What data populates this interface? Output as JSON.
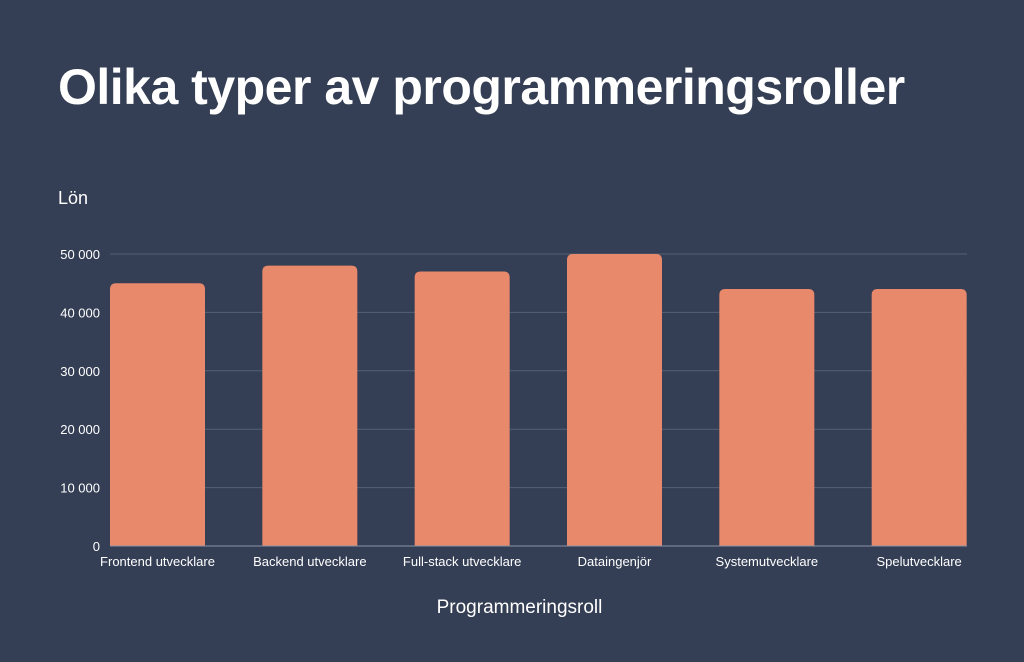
{
  "chart_data": {
    "type": "bar",
    "title": "Olika typer av programmeringsroller",
    "xlabel": "Programmeringsroll",
    "ylabel": "Lön",
    "categories": [
      "Frontend utvecklare",
      "Backend utvecklare",
      "Full-stack utvecklare",
      "Dataingenjör",
      "Systemutvecklare",
      "Spelutvecklare"
    ],
    "values": [
      45000,
      48000,
      47000,
      50000,
      44000,
      44000
    ],
    "ylim": [
      0,
      50000
    ],
    "yticks": [
      0,
      10000,
      20000,
      30000,
      40000,
      50000
    ],
    "ytick_labels": [
      "0",
      "10 000",
      "20 000",
      "30 000",
      "40 000",
      "50 000"
    ],
    "grid": true,
    "colors": {
      "background": "#343e54",
      "bar": "#e8896c",
      "grid": "#556075"
    }
  }
}
